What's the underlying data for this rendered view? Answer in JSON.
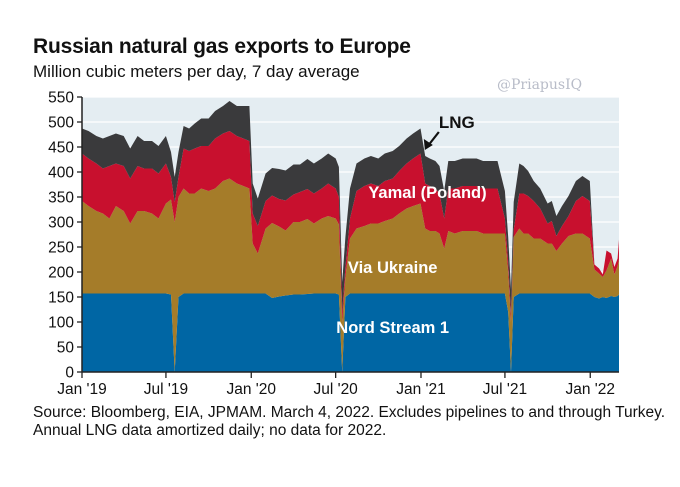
{
  "header": {
    "title": "Russian natural gas exports to Europe",
    "subtitle": "Million cubic meters per day, 7 day average",
    "watermark": "@PriapusIQ"
  },
  "footer": {
    "source": "Source: Bloomberg, EIA, JPMAM. March 4, 2022. Excludes pipelines to and through Turkey.  Annual LNG data amortized daily; no data for 2022."
  },
  "chart_data": {
    "type": "area",
    "stacked": true,
    "title": "Russian natural gas exports to Europe",
    "subtitle": "Million cubic meters per day, 7 day average",
    "xlabel": "",
    "ylabel": "",
    "ylim": [
      0,
      550
    ],
    "yticks": [
      0,
      50,
      100,
      150,
      200,
      250,
      300,
      350,
      400,
      450,
      500,
      550
    ],
    "xlim": [
      "2019-01-01",
      "2022-03-04"
    ],
    "xticks": [
      {
        "date": "2019-01-01",
        "label": "Jan '19"
      },
      {
        "date": "2019-07-01",
        "label": "Jul '19"
      },
      {
        "date": "2020-01-01",
        "label": "Jan '20"
      },
      {
        "date": "2020-07-01",
        "label": "Jul '20"
      },
      {
        "date": "2021-01-01",
        "label": "Jan '21"
      },
      {
        "date": "2021-07-01",
        "label": "Jul '21"
      },
      {
        "date": "2022-01-01",
        "label": "Jan '22"
      }
    ],
    "grid": true,
    "background": "#e4edf2",
    "annotations": [
      {
        "text": "LNG",
        "points_to_date": "2021-01-05",
        "points_to_value": 440
      }
    ],
    "series": [
      {
        "name": "Nord Stream 1",
        "color": "#0066a4",
        "label_date": "2020-11-01",
        "label_value": 90
      },
      {
        "name": "Via Ukraine",
        "color": "#a57c29",
        "label_date": "2020-11-01",
        "label_value": 210
      },
      {
        "name": "Yamal (Poland)",
        "color": "#c8102e",
        "label_date": "2021-01-15",
        "label_value": 360
      },
      {
        "name": "LNG",
        "color": "#3a3a3c"
      }
    ],
    "x": [
      "2019-01-01",
      "2019-01-15",
      "2019-02-01",
      "2019-02-15",
      "2019-03-01",
      "2019-03-15",
      "2019-04-01",
      "2019-04-15",
      "2019-05-01",
      "2019-05-15",
      "2019-06-01",
      "2019-06-15",
      "2019-07-01",
      "2019-07-12",
      "2019-07-20",
      "2019-07-28",
      "2019-08-08",
      "2019-08-20",
      "2019-09-01",
      "2019-09-15",
      "2019-10-01",
      "2019-10-15",
      "2019-11-01",
      "2019-11-15",
      "2019-12-01",
      "2019-12-15",
      "2019-12-28",
      "2020-01-04",
      "2020-01-15",
      "2020-02-01",
      "2020-02-15",
      "2020-03-01",
      "2020-03-15",
      "2020-04-01",
      "2020-04-15",
      "2020-05-01",
      "2020-05-15",
      "2020-06-01",
      "2020-06-15",
      "2020-07-01",
      "2020-07-08",
      "2020-07-15",
      "2020-07-22",
      "2020-08-01",
      "2020-08-15",
      "2020-09-01",
      "2020-09-15",
      "2020-10-01",
      "2020-10-15",
      "2020-11-01",
      "2020-11-15",
      "2020-12-01",
      "2020-12-15",
      "2020-12-31",
      "2021-01-10",
      "2021-01-20",
      "2021-02-01",
      "2021-02-10",
      "2021-02-20",
      "2021-03-01",
      "2021-03-15",
      "2021-04-01",
      "2021-04-15",
      "2021-05-01",
      "2021-05-15",
      "2021-06-01",
      "2021-06-15",
      "2021-07-01",
      "2021-07-08",
      "2021-07-14",
      "2021-07-20",
      "2021-08-01",
      "2021-08-10",
      "2021-08-20",
      "2021-09-01",
      "2021-09-15",
      "2021-10-01",
      "2021-10-10",
      "2021-10-20",
      "2021-11-01",
      "2021-11-15",
      "2021-12-01",
      "2021-12-15",
      "2021-12-31",
      "2022-01-10",
      "2022-01-20",
      "2022-01-28",
      "2022-02-05",
      "2022-02-15",
      "2022-02-22",
      "2022-03-01",
      "2022-03-04"
    ],
    "values": {
      "Nord Stream 1": [
        157,
        157,
        157,
        157,
        157,
        157,
        157,
        157,
        157,
        157,
        157,
        157,
        157,
        155,
        0,
        150,
        157,
        157,
        157,
        157,
        157,
        157,
        157,
        157,
        157,
        157,
        157,
        157,
        157,
        157,
        148,
        151,
        153,
        155,
        155,
        156,
        157,
        157,
        157,
        157,
        155,
        0,
        150,
        157,
        157,
        157,
        157,
        157,
        157,
        157,
        157,
        157,
        157,
        157,
        157,
        157,
        157,
        157,
        157,
        157,
        157,
        157,
        157,
        157,
        157,
        157,
        157,
        157,
        120,
        0,
        150,
        157,
        157,
        157,
        157,
        157,
        157,
        157,
        157,
        157,
        157,
        157,
        157,
        157,
        150,
        147,
        150,
        148,
        152,
        150,
        152,
        155
      ],
      "Via Ukraine": [
        185,
        175,
        165,
        160,
        150,
        175,
        165,
        140,
        165,
        165,
        160,
        150,
        180,
        190,
        300,
        200,
        210,
        200,
        200,
        210,
        205,
        210,
        225,
        230,
        220,
        215,
        210,
        100,
        80,
        130,
        150,
        140,
        130,
        145,
        145,
        150,
        140,
        150,
        155,
        150,
        140,
        100,
        40,
        110,
        130,
        135,
        140,
        140,
        145,
        150,
        160,
        170,
        175,
        180,
        130,
        125,
        125,
        120,
        90,
        125,
        120,
        125,
        125,
        125,
        120,
        120,
        120,
        120,
        80,
        100,
        120,
        130,
        120,
        120,
        110,
        110,
        100,
        100,
        85,
        100,
        115,
        120,
        120,
        110,
        55,
        50,
        40,
        55,
        75,
        45,
        60,
        70
      ],
      "Yamal (Poland)": [
        95,
        95,
        95,
        90,
        105,
        85,
        90,
        90,
        90,
        85,
        90,
        90,
        80,
        45,
        40,
        40,
        80,
        85,
        90,
        85,
        90,
        100,
        95,
        95,
        95,
        95,
        95,
        60,
        55,
        55,
        55,
        55,
        60,
        55,
        60,
        60,
        60,
        60,
        65,
        60,
        55,
        20,
        20,
        40,
        75,
        80,
        80,
        75,
        80,
        80,
        85,
        90,
        95,
        100,
        90,
        90,
        85,
        80,
        60,
        85,
        90,
        90,
        90,
        90,
        90,
        90,
        90,
        30,
        20,
        15,
        15,
        70,
        80,
        75,
        75,
        60,
        40,
        45,
        30,
        35,
        40,
        65,
        75,
        75,
        10,
        10,
        5,
        40,
        10,
        15,
        15,
        40
      ],
      "LNG": [
        50,
        55,
        55,
        60,
        60,
        60,
        60,
        60,
        60,
        55,
        55,
        55,
        55,
        50,
        50,
        50,
        45,
        45,
        50,
        55,
        55,
        55,
        55,
        60,
        60,
        65,
        70,
        60,
        55,
        55,
        55,
        60,
        60,
        60,
        55,
        60,
        60,
        60,
        60,
        60,
        60,
        60,
        60,
        60,
        55,
        55,
        55,
        55,
        55,
        55,
        50,
        50,
        50,
        50,
        55,
        55,
        55,
        55,
        55,
        55,
        55,
        55,
        55,
        55,
        55,
        55,
        55,
        55,
        50,
        50,
        55,
        60,
        55,
        50,
        40,
        40,
        40,
        40,
        40,
        40,
        40,
        40,
        40,
        40,
        0,
        0,
        0,
        0,
        0,
        0,
        0,
        0
      ]
    }
  }
}
